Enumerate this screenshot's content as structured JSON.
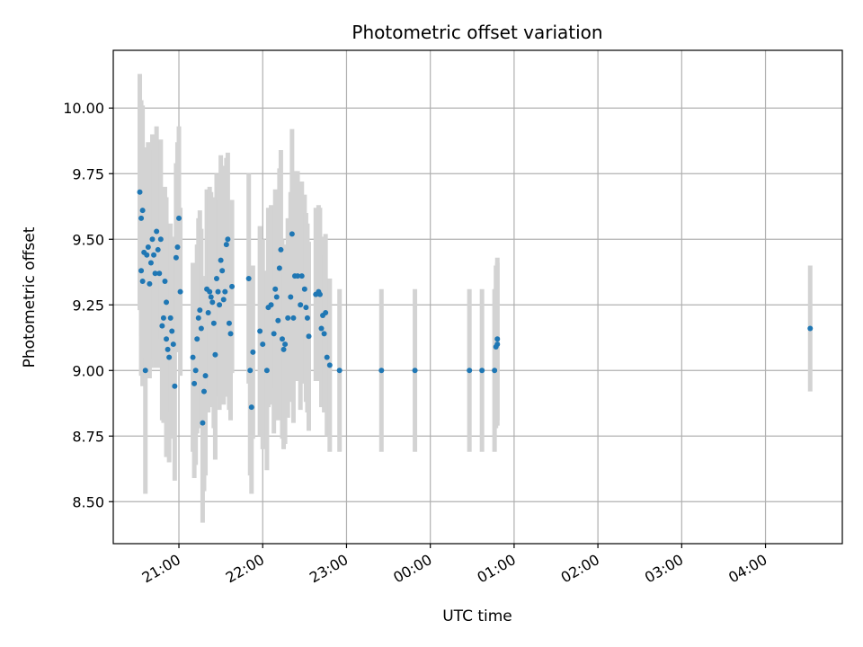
{
  "chart_data": {
    "type": "scatter",
    "title": "Photometric offset variation",
    "xlabel": "UTC time",
    "ylabel": "Photometric offset",
    "grid": true,
    "x_unit": "UTC time (hours past 20:00, wraps past midnight)",
    "xlim": [
      "20:13",
      "04:55"
    ],
    "ylim": [
      8.34,
      10.22
    ],
    "x_ticks": [
      "21:00",
      "22:00",
      "23:00",
      "00:00",
      "01:00",
      "02:00",
      "03:00",
      "04:00"
    ],
    "y_ticks": [
      "8.50",
      "8.75",
      "9.00",
      "9.25",
      "9.50",
      "9.75",
      "10.00"
    ],
    "colors": {
      "point": "#1f77b4",
      "errorbar": "#d3d3d3",
      "grid": "#b0b0b0"
    },
    "series": [
      {
        "points": [
          {
            "x": "20:32",
            "y": 9.68,
            "err": 0.45
          },
          {
            "x": "20:33",
            "y": 9.58,
            "err": 0.45
          },
          {
            "x": "20:34",
            "y": 9.61,
            "err": 0.4
          },
          {
            "x": "20:33",
            "y": 9.38,
            "err": 0.4
          },
          {
            "x": "20:34",
            "y": 9.34,
            "err": 0.4
          },
          {
            "x": "20:36",
            "y": 9.0,
            "err": 0.47
          },
          {
            "x": "20:35",
            "y": 9.45,
            "err": 0.4
          },
          {
            "x": "20:37",
            "y": 9.44,
            "err": 0.4
          },
          {
            "x": "20:38",
            "y": 9.47,
            "err": 0.4
          },
          {
            "x": "20:39",
            "y": 9.33,
            "err": 0.36
          },
          {
            "x": "20:40",
            "y": 9.41,
            "err": 0.4
          },
          {
            "x": "20:41",
            "y": 9.5,
            "err": 0.4
          },
          {
            "x": "20:42",
            "y": 9.44,
            "err": 0.4
          },
          {
            "x": "20:43",
            "y": 9.37,
            "err": 0.36
          },
          {
            "x": "20:44",
            "y": 9.53,
            "err": 0.4
          },
          {
            "x": "20:45",
            "y": 9.46,
            "err": 0.36
          },
          {
            "x": "20:46",
            "y": 9.37,
            "err": 0.36
          },
          {
            "x": "20:47",
            "y": 9.5,
            "err": 0.38
          },
          {
            "x": "20:48",
            "y": 9.17,
            "err": 0.36
          },
          {
            "x": "20:49",
            "y": 9.2,
            "err": 0.4
          },
          {
            "x": "20:50",
            "y": 9.34,
            "err": 0.36
          },
          {
            "x": "20:51",
            "y": 9.26,
            "err": 0.4
          },
          {
            "x": "20:51",
            "y": 9.12,
            "err": 0.45
          },
          {
            "x": "20:52",
            "y": 9.08,
            "err": 0.4
          },
          {
            "x": "20:53",
            "y": 9.05,
            "err": 0.4
          },
          {
            "x": "20:54",
            "y": 9.2,
            "err": 0.36
          },
          {
            "x": "20:55",
            "y": 9.15,
            "err": 0.36
          },
          {
            "x": "20:56",
            "y": 9.1,
            "err": 0.36
          },
          {
            "x": "20:57",
            "y": 8.94,
            "err": 0.36
          },
          {
            "x": "20:58",
            "y": 9.43,
            "err": 0.36
          },
          {
            "x": "20:59",
            "y": 9.47,
            "err": 0.4
          },
          {
            "x": "21:00",
            "y": 9.58,
            "err": 0.35
          },
          {
            "x": "21:01",
            "y": 9.3,
            "err": 0.32
          },
          {
            "x": "21:10",
            "y": 9.05,
            "err": 0.36
          },
          {
            "x": "21:11",
            "y": 8.95,
            "err": 0.36
          },
          {
            "x": "21:12",
            "y": 9.0,
            "err": 0.36
          },
          {
            "x": "21:13",
            "y": 9.12,
            "err": 0.36
          },
          {
            "x": "21:14",
            "y": 9.2,
            "err": 0.38
          },
          {
            "x": "21:15",
            "y": 9.23,
            "err": 0.38
          },
          {
            "x": "21:16",
            "y": 9.16,
            "err": 0.38
          },
          {
            "x": "21:17",
            "y": 8.8,
            "err": 0.38
          },
          {
            "x": "21:18",
            "y": 8.92,
            "err": 0.38
          },
          {
            "x": "21:19",
            "y": 8.98,
            "err": 0.38
          },
          {
            "x": "21:20",
            "y": 9.31,
            "err": 0.38
          },
          {
            "x": "21:21",
            "y": 9.22,
            "err": 0.38
          },
          {
            "x": "21:22",
            "y": 9.3,
            "err": 0.4
          },
          {
            "x": "21:23",
            "y": 9.28,
            "err": 0.4
          },
          {
            "x": "21:24",
            "y": 9.26,
            "err": 0.4
          },
          {
            "x": "21:25",
            "y": 9.18,
            "err": 0.4
          },
          {
            "x": "21:26",
            "y": 9.06,
            "err": 0.4
          },
          {
            "x": "21:27",
            "y": 9.35,
            "err": 0.4
          },
          {
            "x": "21:28",
            "y": 9.3,
            "err": 0.4
          },
          {
            "x": "21:29",
            "y": 9.25,
            "err": 0.4
          },
          {
            "x": "21:30",
            "y": 9.42,
            "err": 0.4
          },
          {
            "x": "21:31",
            "y": 9.38,
            "err": 0.4
          },
          {
            "x": "21:32",
            "y": 9.27,
            "err": 0.4
          },
          {
            "x": "21:33",
            "y": 9.3,
            "err": 0.4
          },
          {
            "x": "21:34",
            "y": 9.48,
            "err": 0.33
          },
          {
            "x": "21:35",
            "y": 9.5,
            "err": 0.33
          },
          {
            "x": "21:36",
            "y": 9.18,
            "err": 0.33
          },
          {
            "x": "21:37",
            "y": 9.14,
            "err": 0.33
          },
          {
            "x": "21:38",
            "y": 9.32,
            "err": 0.33
          },
          {
            "x": "21:50",
            "y": 9.35,
            "err": 0.4
          },
          {
            "x": "21:51",
            "y": 9.0,
            "err": 0.4
          },
          {
            "x": "21:52",
            "y": 8.86,
            "err": 0.33
          },
          {
            "x": "21:53",
            "y": 9.07,
            "err": 0.33
          },
          {
            "x": "21:58",
            "y": 9.15,
            "err": 0.4
          },
          {
            "x": "22:00",
            "y": 9.1,
            "err": 0.4
          },
          {
            "x": "22:03",
            "y": 9.0,
            "err": 0.38
          },
          {
            "x": "22:04",
            "y": 9.24,
            "err": 0.38
          },
          {
            "x": "22:06",
            "y": 9.25,
            "err": 0.38
          },
          {
            "x": "22:08",
            "y": 9.14,
            "err": 0.38
          },
          {
            "x": "22:09",
            "y": 9.31,
            "err": 0.38
          },
          {
            "x": "22:10",
            "y": 9.28,
            "err": 0.38
          },
          {
            "x": "22:11",
            "y": 9.19,
            "err": 0.38
          },
          {
            "x": "22:12",
            "y": 9.39,
            "err": 0.38
          },
          {
            "x": "22:13",
            "y": 9.46,
            "err": 0.38
          },
          {
            "x": "22:14",
            "y": 9.12,
            "err": 0.38
          },
          {
            "x": "22:15",
            "y": 9.08,
            "err": 0.38
          },
          {
            "x": "22:16",
            "y": 9.1,
            "err": 0.38
          },
          {
            "x": "22:18",
            "y": 9.2,
            "err": 0.38
          },
          {
            "x": "22:20",
            "y": 9.28,
            "err": 0.4
          },
          {
            "x": "22:21",
            "y": 9.52,
            "err": 0.4
          },
          {
            "x": "22:22",
            "y": 9.2,
            "err": 0.4
          },
          {
            "x": "22:23",
            "y": 9.36,
            "err": 0.4
          },
          {
            "x": "22:25",
            "y": 9.36,
            "err": 0.4
          },
          {
            "x": "22:27",
            "y": 9.25,
            "err": 0.4
          },
          {
            "x": "22:28",
            "y": 9.36,
            "err": 0.36
          },
          {
            "x": "22:30",
            "y": 9.31,
            "err": 0.36
          },
          {
            "x": "22:31",
            "y": 9.24,
            "err": 0.36
          },
          {
            "x": "22:32",
            "y": 9.2,
            "err": 0.36
          },
          {
            "x": "22:33",
            "y": 9.13,
            "err": 0.36
          },
          {
            "x": "22:38",
            "y": 9.29,
            "err": 0.33
          },
          {
            "x": "22:40",
            "y": 9.3,
            "err": 0.33
          },
          {
            "x": "22:41",
            "y": 9.29,
            "err": 0.33
          },
          {
            "x": "22:42",
            "y": 9.16,
            "err": 0.3
          },
          {
            "x": "22:43",
            "y": 9.21,
            "err": 0.3
          },
          {
            "x": "22:44",
            "y": 9.14,
            "err": 0.3
          },
          {
            "x": "22:45",
            "y": 9.22,
            "err": 0.3
          },
          {
            "x": "22:46",
            "y": 9.05,
            "err": 0.3
          },
          {
            "x": "22:48",
            "y": 9.02,
            "err": 0.33
          },
          {
            "x": "22:55",
            "y": 9.0,
            "err": 0.31
          },
          {
            "x": "23:25",
            "y": 9.0,
            "err": 0.31
          },
          {
            "x": "23:49",
            "y": 9.0,
            "err": 0.31
          },
          {
            "x": "00:28",
            "y": 9.0,
            "err": 0.31
          },
          {
            "x": "00:37",
            "y": 9.0,
            "err": 0.31
          },
          {
            "x": "00:46",
            "y": 9.0,
            "err": 0.31
          },
          {
            "x": "00:47",
            "y": 9.09,
            "err": 0.31
          },
          {
            "x": "00:48",
            "y": 9.12,
            "err": 0.31
          },
          {
            "x": "00:48",
            "y": 9.1,
            "err": 0.31
          },
          {
            "x": "04:32",
            "y": 9.16,
            "err": 0.24
          }
        ]
      }
    ]
  }
}
